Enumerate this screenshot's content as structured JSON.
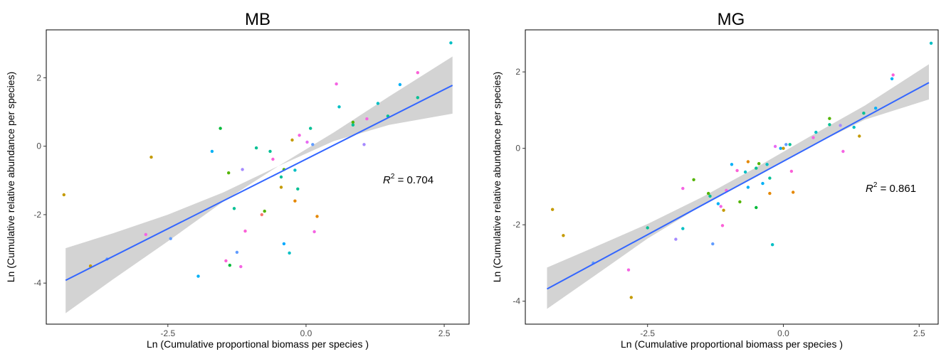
{
  "chart_data": [
    {
      "type": "scatter",
      "title": "MB",
      "xlabel": "Ln (Cumulative proportional biomass per species )",
      "ylabel": "Ln (Cumulative relative abundance per species)",
      "xlim": [
        -4.7,
        2.95
      ],
      "ylim": [
        -5.2,
        3.4
      ],
      "x_ticks": [
        -2.5,
        0.0,
        2.5
      ],
      "x_tick_labels": [
        "-2.5",
        "0.0",
        "2.5"
      ],
      "y_ticks": [
        -4,
        -2,
        0,
        2
      ],
      "y_tick_labels": [
        "-4",
        "-2",
        "0",
        "2"
      ],
      "grid": false,
      "legend": "none",
      "annotation": {
        "prefix": "R",
        "superscript": "2",
        "text": " = 0.704"
      },
      "fit": {
        "line": [
          [
            -4.35,
            -3.92
          ],
          [
            2.65,
            1.78
          ]
        ],
        "ci": [
          [
            -4.35,
            -4.88,
            -2.98
          ],
          [
            -3.5,
            -3.9,
            -2.55
          ],
          [
            -2.5,
            -2.78,
            -2.0
          ],
          [
            -1.5,
            -1.62,
            -1.35
          ],
          [
            -0.5,
            -0.58,
            -0.58
          ],
          [
            0.5,
            0.15,
            0.4
          ],
          [
            1.5,
            0.62,
            1.45
          ],
          [
            2.65,
            0.95,
            2.62
          ]
        ]
      },
      "points": [
        [
          -4.38,
          -1.42,
          "#c49a00"
        ],
        [
          -3.9,
          -3.5,
          "#c49a00"
        ],
        [
          -3.6,
          -3.3,
          "#619cff"
        ],
        [
          -2.8,
          -0.32,
          "#c49a00"
        ],
        [
          -2.9,
          -2.58,
          "#f564e3"
        ],
        [
          -2.45,
          -2.7,
          "#619cff"
        ],
        [
          -1.95,
          -3.8,
          "#00b0f6"
        ],
        [
          -1.7,
          -0.15,
          "#00b0f6"
        ],
        [
          -1.55,
          0.52,
          "#00ba38"
        ],
        [
          -1.4,
          -0.78,
          "#53b400"
        ],
        [
          -1.3,
          -1.82,
          "#00c094"
        ],
        [
          -1.25,
          -3.1,
          "#619cff"
        ],
        [
          -1.15,
          -0.68,
          "#a58aff"
        ],
        [
          -1.1,
          -2.48,
          "#fb61d7"
        ],
        [
          -1.38,
          -3.48,
          "#00ba38"
        ],
        [
          -1.18,
          -3.52,
          "#f564e3"
        ],
        [
          -1.45,
          -3.35,
          "#fb61d7"
        ],
        [
          -0.9,
          -0.05,
          "#00c094"
        ],
        [
          -0.8,
          -2.0,
          "#f8766d"
        ],
        [
          -0.75,
          -1.9,
          "#53b400"
        ],
        [
          -0.65,
          -0.15,
          "#00c094"
        ],
        [
          -0.6,
          -0.38,
          "#fb61d7"
        ],
        [
          -0.45,
          -0.9,
          "#00c094"
        ],
        [
          -0.4,
          -0.68,
          "#53b400"
        ],
        [
          -0.45,
          -1.2,
          "#c49a00"
        ],
        [
          -0.4,
          -2.85,
          "#00a9ff"
        ],
        [
          -0.3,
          -3.12,
          "#00bfc4"
        ],
        [
          -0.25,
          0.18,
          "#c49a00"
        ],
        [
          -0.2,
          -0.7,
          "#00bfc4"
        ],
        [
          -0.15,
          -1.25,
          "#00c094"
        ],
        [
          -0.2,
          -1.6,
          "#e58700"
        ],
        [
          -0.12,
          0.32,
          "#f564e3"
        ],
        [
          0.02,
          0.12,
          "#e76bf3"
        ],
        [
          0.08,
          0.52,
          "#00c094"
        ],
        [
          0.12,
          0.05,
          "#619cff"
        ],
        [
          0.15,
          -2.5,
          "#f564e3"
        ],
        [
          0.2,
          -2.05,
          "#e58700"
        ],
        [
          0.55,
          1.82,
          "#f564e3"
        ],
        [
          0.6,
          1.15,
          "#00bfc4"
        ],
        [
          0.85,
          0.7,
          "#53b400"
        ],
        [
          0.85,
          0.62,
          "#00c094"
        ],
        [
          1.05,
          0.05,
          "#a58aff"
        ],
        [
          1.1,
          0.8,
          "#f564e3"
        ],
        [
          1.3,
          1.25,
          "#00bfc4"
        ],
        [
          1.48,
          0.88,
          "#00c094"
        ],
        [
          1.7,
          1.8,
          "#00b0f6"
        ],
        [
          2.02,
          2.15,
          "#fb61d7"
        ],
        [
          2.02,
          1.42,
          "#00c094"
        ],
        [
          2.62,
          3.02,
          "#00bfc4"
        ]
      ]
    },
    {
      "type": "scatter",
      "title": "MG",
      "xlabel": "Ln (Cumulative proportional biomass per species )",
      "ylabel": "Ln (Cumulative relative abundance per species)",
      "xlim": [
        -4.75,
        2.85
      ],
      "ylim": [
        -4.6,
        3.1
      ],
      "x_ticks": [
        -2.5,
        0.0,
        2.5
      ],
      "x_tick_labels": [
        "-2.5",
        "0.0",
        "2.5"
      ],
      "y_ticks": [
        -4,
        -2,
        0,
        2
      ],
      "y_tick_labels": [
        "-4",
        "-2",
        "0",
        "2"
      ],
      "grid": false,
      "legend": "none",
      "annotation": {
        "prefix": "R",
        "superscript": "2",
        "text": " = 0.861"
      },
      "fit": {
        "line": [
          [
            -4.35,
            -3.68
          ],
          [
            2.68,
            1.72
          ]
        ],
        "ci": [
          [
            -4.35,
            -4.2,
            -3.12
          ],
          [
            -3.5,
            -3.36,
            -2.6
          ],
          [
            -2.5,
            -2.36,
            -1.98
          ],
          [
            -1.5,
            -1.5,
            -1.28
          ],
          [
            -0.5,
            -0.75,
            -0.5
          ],
          [
            0.5,
            0.05,
            0.32
          ],
          [
            1.5,
            0.75,
            1.12
          ],
          [
            2.68,
            1.28,
            2.2
          ]
        ]
      },
      "points": [
        [
          -4.25,
          -1.6,
          "#c49a00"
        ],
        [
          -4.05,
          -2.28,
          "#c49a00"
        ],
        [
          -3.5,
          -3.0,
          "#619cff"
        ],
        [
          -2.85,
          -3.18,
          "#f564e3"
        ],
        [
          -2.8,
          -3.9,
          "#c49a00"
        ],
        [
          -2.5,
          -2.08,
          "#00c094"
        ],
        [
          -1.98,
          -2.38,
          "#a58aff"
        ],
        [
          -1.85,
          -1.05,
          "#f564e3"
        ],
        [
          -1.85,
          -2.1,
          "#00bfc4"
        ],
        [
          -1.65,
          -0.82,
          "#53b400"
        ],
        [
          -1.35,
          -1.25,
          "#00c094"
        ],
        [
          -1.38,
          -1.18,
          "#53b400"
        ],
        [
          -1.3,
          -2.5,
          "#619cff"
        ],
        [
          -1.2,
          -1.45,
          "#00b0f6"
        ],
        [
          -1.15,
          -1.52,
          "#f564e3"
        ],
        [
          -1.12,
          -2.02,
          "#fb61d7"
        ],
        [
          -1.1,
          -1.62,
          "#c49a00"
        ],
        [
          -1.05,
          -1.1,
          "#f564e3"
        ],
        [
          -0.95,
          -0.42,
          "#00b0f6"
        ],
        [
          -0.85,
          -0.58,
          "#fb61d7"
        ],
        [
          -0.8,
          -1.4,
          "#53b400"
        ],
        [
          -0.7,
          -0.62,
          "#00bfc4"
        ],
        [
          -0.65,
          -0.35,
          "#e58700"
        ],
        [
          -0.65,
          -1.02,
          "#00b0f6"
        ],
        [
          -0.5,
          -0.52,
          "#00c094"
        ],
        [
          -0.45,
          -0.4,
          "#53b400"
        ],
        [
          -0.5,
          -1.55,
          "#00ba38"
        ],
        [
          -0.38,
          -0.92,
          "#00b0f6"
        ],
        [
          -0.3,
          -0.42,
          "#00bfc4"
        ],
        [
          -0.25,
          -0.78,
          "#00c094"
        ],
        [
          -0.25,
          -1.18,
          "#e58700"
        ],
        [
          -0.2,
          -2.52,
          "#00bfc4"
        ],
        [
          -0.15,
          0.05,
          "#e76bf3"
        ],
        [
          -0.05,
          0.0,
          "#00a9ff"
        ],
        [
          0.0,
          0.0,
          "#c49a00"
        ],
        [
          0.05,
          0.1,
          "#619cff"
        ],
        [
          0.12,
          0.1,
          "#00c094"
        ],
        [
          0.15,
          -0.6,
          "#fb61d7"
        ],
        [
          0.18,
          -1.15,
          "#e58700"
        ],
        [
          0.55,
          0.28,
          "#f564e3"
        ],
        [
          0.6,
          0.42,
          "#00bfc4"
        ],
        [
          0.85,
          0.78,
          "#53b400"
        ],
        [
          0.85,
          0.62,
          "#00c094"
        ],
        [
          1.05,
          0.6,
          "#a58aff"
        ],
        [
          1.1,
          -0.08,
          "#f564e3"
        ],
        [
          1.3,
          0.55,
          "#00bfc4"
        ],
        [
          1.4,
          0.32,
          "#c49a00"
        ],
        [
          1.48,
          0.92,
          "#00c094"
        ],
        [
          1.7,
          1.05,
          "#00b0f6"
        ],
        [
          2.0,
          1.82,
          "#00b0f6"
        ],
        [
          2.02,
          1.92,
          "#fb61d7"
        ],
        [
          2.72,
          2.75,
          "#00bfc4"
        ]
      ]
    }
  ]
}
